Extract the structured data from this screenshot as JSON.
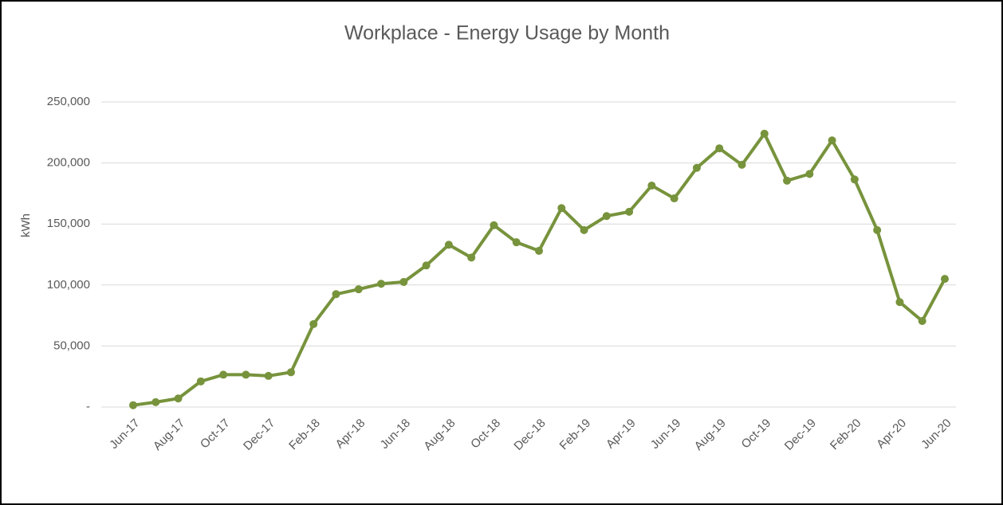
{
  "chart_data": {
    "type": "line",
    "title": "Workplace - Energy Usage by Month",
    "y_label": "kWh",
    "categories": [
      "Jun-17",
      null,
      "Aug-17",
      null,
      "Oct-17",
      null,
      "Dec-17",
      null,
      "Feb-18",
      null,
      "Apr-18",
      null,
      "Jun-18",
      null,
      "Aug-18",
      null,
      "Oct-18",
      null,
      "Dec-18",
      null,
      "Feb-19",
      null,
      "Apr-19",
      null,
      "Jun-19",
      null,
      "Aug-19",
      null,
      "Oct-19",
      null,
      "Dec-19",
      null,
      "Feb-20",
      null,
      "Apr-20",
      null,
      "Jun-20"
    ],
    "values": [
      1500,
      4000,
      7000,
      21000,
      26500,
      26500,
      25500,
      28500,
      68000,
      92500,
      96500,
      101000,
      102500,
      116000,
      133000,
      122500,
      149000,
      135000,
      128000,
      163000,
      145000,
      156500,
      160000,
      181500,
      171000,
      196000,
      212000,
      198500,
      224000,
      185500,
      191000,
      218500,
      186500,
      145000,
      86000,
      70500,
      105000
    ],
    "color": "#77933c",
    "ylim": [
      0,
      250000
    ],
    "yticks": [
      {
        "value": 0,
        "label": "-"
      },
      {
        "value": 50000,
        "label": "50,000"
      },
      {
        "value": 100000,
        "label": "100,000"
      },
      {
        "value": 150000,
        "label": "150,000"
      },
      {
        "value": 200000,
        "label": "200,000"
      },
      {
        "value": 250000,
        "label": "250,000"
      }
    ],
    "grid": true
  }
}
